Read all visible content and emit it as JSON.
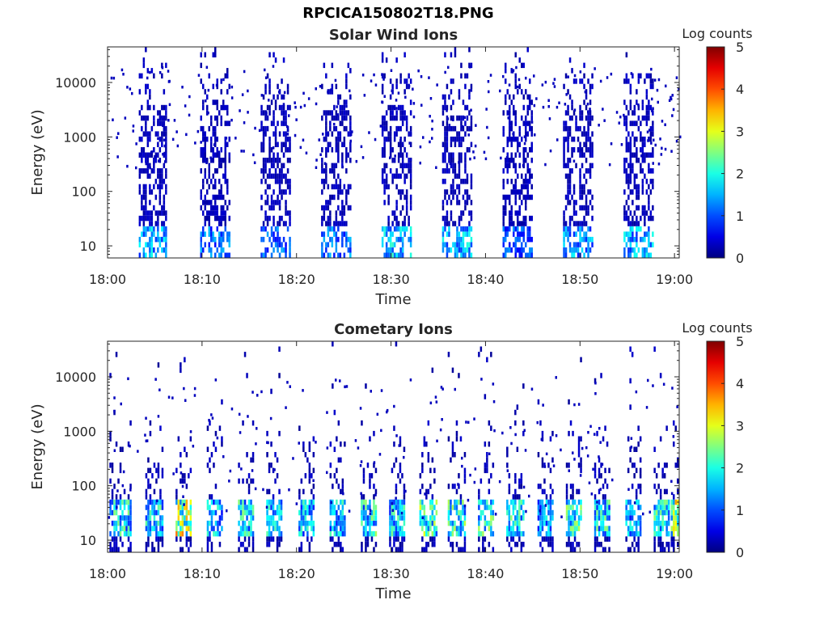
{
  "figure": {
    "title": "RPCICA150802T18.PNG"
  },
  "chart_data": [
    {
      "type": "heatmap",
      "title": "Solar Wind Ions",
      "xlabel": "Time",
      "ylabel": "Energy (eV)",
      "x_tick_labels": [
        "18:00",
        "18:10",
        "18:20",
        "18:30",
        "18:40",
        "18:50",
        "19:00"
      ],
      "x_ticks_minutes": [
        0,
        10,
        20,
        30,
        40,
        50,
        60
      ],
      "xlim_minutes": [
        0,
        60.5
      ],
      "y_scale": "log",
      "y_tick_labels": [
        "10",
        "100",
        "1000",
        "10000"
      ],
      "y_ticks": [
        10,
        100,
        1000,
        10000
      ],
      "ylim": [
        6,
        45000
      ],
      "colorbar": {
        "label": "Log counts",
        "range": [
          0,
          5
        ],
        "tick_labels": [
          "0",
          "1",
          "2",
          "3",
          "4",
          "5"
        ],
        "colormap": "jet"
      },
      "bursts": [
        {
          "start": 3.3,
          "end": 6.2,
          "peak_level": 2.0
        },
        {
          "start": 9.8,
          "end": 12.8,
          "peak_level": 1.6
        },
        {
          "start": 16.2,
          "end": 19.2,
          "peak_level": 1.5
        },
        {
          "start": 22.6,
          "end": 25.6,
          "peak_level": 1.6
        },
        {
          "start": 29.0,
          "end": 32.2,
          "peak_level": 2.2
        },
        {
          "start": 35.4,
          "end": 38.6,
          "peak_level": 2.1
        },
        {
          "start": 41.8,
          "end": 44.8,
          "peak_level": 1.4
        },
        {
          "start": 48.2,
          "end": 51.2,
          "peak_level": 1.9
        },
        {
          "start": 54.6,
          "end": 57.6,
          "peak_level": 2.0
        }
      ]
    },
    {
      "type": "heatmap",
      "title": "Cometary Ions",
      "xlabel": "Time",
      "ylabel": "Energy (eV)",
      "x_tick_labels": [
        "18:00",
        "18:10",
        "18:20",
        "18:30",
        "18:40",
        "18:50",
        "19:00"
      ],
      "x_ticks_minutes": [
        0,
        10,
        20,
        30,
        40,
        50,
        60
      ],
      "xlim_minutes": [
        0,
        60.5
      ],
      "y_scale": "log",
      "y_tick_labels": [
        "10",
        "100",
        "1000",
        "10000"
      ],
      "y_ticks": [
        10,
        100,
        1000,
        10000
      ],
      "ylim": [
        6,
        45000
      ],
      "colorbar": {
        "label": "Log counts",
        "range": [
          0,
          5
        ],
        "tick_labels": [
          "0",
          "1",
          "2",
          "3",
          "4",
          "5"
        ],
        "colormap": "jet"
      },
      "bursts": [
        {
          "start": 0.2,
          "end": 2.5,
          "peak_level": 2.6
        },
        {
          "start": 4.0,
          "end": 5.8,
          "peak_level": 2.5
        },
        {
          "start": 7.2,
          "end": 8.8,
          "peak_level": 3.9
        },
        {
          "start": 10.5,
          "end": 12.0,
          "peak_level": 2.2
        },
        {
          "start": 13.8,
          "end": 15.3,
          "peak_level": 2.6
        },
        {
          "start": 16.8,
          "end": 18.3,
          "peak_level": 2.4
        },
        {
          "start": 20.2,
          "end": 21.8,
          "peak_level": 2.3
        },
        {
          "start": 23.5,
          "end": 25.0,
          "peak_level": 2.4
        },
        {
          "start": 26.8,
          "end": 28.3,
          "peak_level": 2.7
        },
        {
          "start": 29.8,
          "end": 31.5,
          "peak_level": 2.5
        },
        {
          "start": 33.0,
          "end": 34.8,
          "peak_level": 3.0
        },
        {
          "start": 36.0,
          "end": 37.8,
          "peak_level": 2.8
        },
        {
          "start": 39.2,
          "end": 40.8,
          "peak_level": 2.8
        },
        {
          "start": 42.2,
          "end": 44.0,
          "peak_level": 2.6
        },
        {
          "start": 45.5,
          "end": 47.2,
          "peak_level": 2.2
        },
        {
          "start": 48.5,
          "end": 50.2,
          "peak_level": 2.8
        },
        {
          "start": 51.5,
          "end": 53.0,
          "peak_level": 2.6
        },
        {
          "start": 54.8,
          "end": 56.5,
          "peak_level": 2.1
        },
        {
          "start": 57.8,
          "end": 59.5,
          "peak_level": 2.8
        },
        {
          "start": 59.6,
          "end": 60.4,
          "peak_level": 3.6
        }
      ]
    }
  ]
}
